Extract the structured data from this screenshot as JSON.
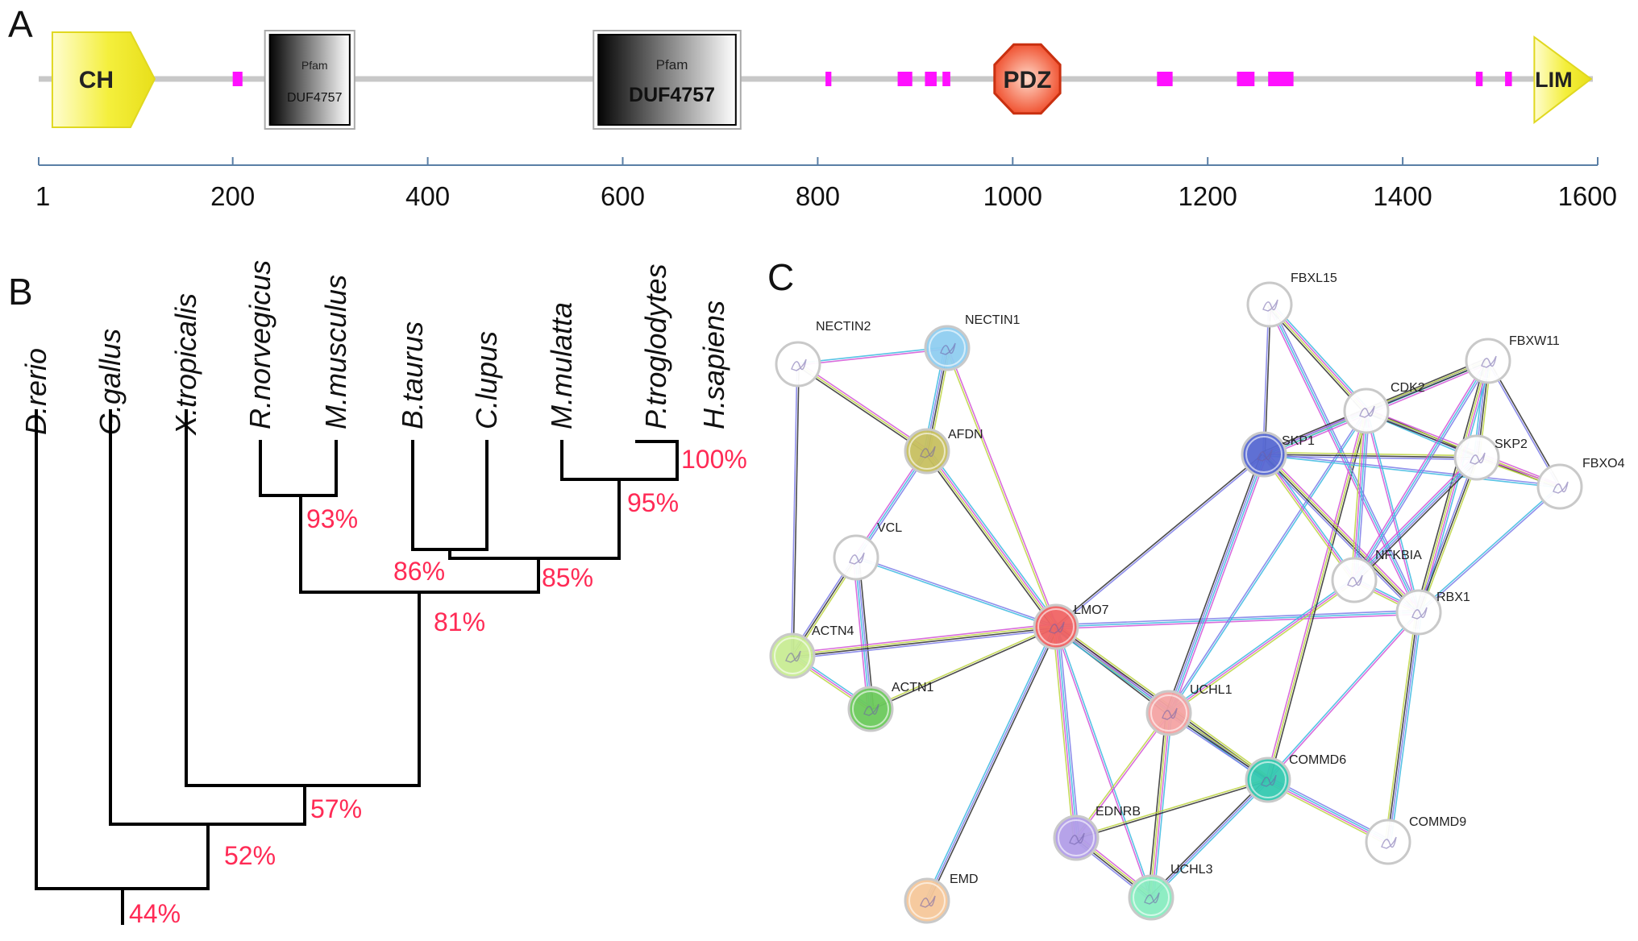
{
  "panels": {
    "a": "A",
    "b": "B",
    "c": "C"
  },
  "domain_map": {
    "axis_ticks": [
      {
        "label": "1",
        "value": 1
      },
      {
        "label": "200",
        "value": 200
      },
      {
        "label": "400",
        "value": 400
      },
      {
        "label": "600",
        "value": 600
      },
      {
        "label": "800",
        "value": 800
      },
      {
        "label": "1000",
        "value": 1000
      },
      {
        "label": "1200",
        "value": 1200
      },
      {
        "label": "1400",
        "value": 1400
      },
      {
        "label": "1600",
        "value": 1600
      }
    ],
    "domains": [
      {
        "id": "ch",
        "label": "CH",
        "shape": "pentagon-right",
        "start": 15,
        "end": 120,
        "color": "#f2ec3a"
      },
      {
        "id": "duf1",
        "pfam": "Pfam",
        "label": "DUF4757",
        "shape": "box",
        "start": 238,
        "end": 320,
        "color": "#000000"
      },
      {
        "id": "duf2",
        "pfam": "Pfam",
        "label": "DUF4757",
        "shape": "box",
        "start": 575,
        "end": 716,
        "color": "#000000"
      },
      {
        "id": "pdz",
        "label": "PDZ",
        "shape": "octagon",
        "start": 980,
        "end": 1050,
        "color": "#f04a24"
      },
      {
        "id": "lim",
        "label": "LIM",
        "shape": "arrow",
        "start": 1535,
        "end": 1575,
        "color": "#f2ec3a"
      }
    ],
    "motifs": [
      {
        "start": 200,
        "end": 210
      },
      {
        "start": 808,
        "end": 814
      },
      {
        "start": 882,
        "end": 897
      },
      {
        "start": 910,
        "end": 922
      },
      {
        "start": 928,
        "end": 936
      },
      {
        "start": 1148,
        "end": 1164
      },
      {
        "start": 1230,
        "end": 1248
      },
      {
        "start": 1262,
        "end": 1288
      },
      {
        "start": 1475,
        "end": 1482
      },
      {
        "start": 1505,
        "end": 1512
      }
    ],
    "motif_color": "#ff10ff"
  },
  "tree": {
    "taxa": [
      "D.rerio",
      "G.gallus",
      "X.tropicalis",
      "R.norvegicus",
      "M.musculus",
      "B.taurus",
      "C.lupus",
      "M.mulatta",
      "P.troglodytes",
      "H.sapiens"
    ],
    "bootstrap": [
      {
        "node": "hom_pan",
        "label": "100%"
      },
      {
        "node": "primates",
        "label": "95%"
      },
      {
        "node": "rodents",
        "label": "93%"
      },
      {
        "node": "laurasia",
        "label": "86%"
      },
      {
        "node": "euarchonto",
        "label": "85%"
      },
      {
        "node": "mammals",
        "label": "81%"
      },
      {
        "node": "tetrapods",
        "label": "57%"
      },
      {
        "node": "amniotes",
        "label": "52%"
      },
      {
        "node": "root",
        "label": "44%"
      }
    ]
  },
  "network": {
    "nodes": [
      {
        "id": "NECTIN2",
        "label": "NECTIN2",
        "fill": "#ffffff"
      },
      {
        "id": "NECTIN1",
        "label": "NECTIN1",
        "fill": "#8fcdf0"
      },
      {
        "id": "AFDN",
        "label": "AFDN",
        "fill": "#c7c060"
      },
      {
        "id": "VCL",
        "label": "VCL",
        "fill": "#ffffff"
      },
      {
        "id": "ACTN4",
        "label": "ACTN4",
        "fill": "#c8ec94"
      },
      {
        "id": "ACTN1",
        "label": "ACTN1",
        "fill": "#6cc95c"
      },
      {
        "id": "LMO7",
        "label": "LMO7",
        "fill": "#f06464"
      },
      {
        "id": "EMD",
        "label": "EMD",
        "fill": "#f5c79a"
      },
      {
        "id": "EDNRB",
        "label": "EDNRB",
        "fill": "#b29ee8"
      },
      {
        "id": "UCHL3",
        "label": "UCHL3",
        "fill": "#88ecc0"
      },
      {
        "id": "UCHL1",
        "label": "UCHL1",
        "fill": "#f4a3a3"
      },
      {
        "id": "COMMD6",
        "label": "COMMD6",
        "fill": "#35c9b0"
      },
      {
        "id": "COMMD9",
        "label": "COMMD9",
        "fill": "#ffffff"
      },
      {
        "id": "FBXL15",
        "label": "FBXL15",
        "fill": "#ffffff"
      },
      {
        "id": "SKP1",
        "label": "SKP1",
        "fill": "#5668d2"
      },
      {
        "id": "CDK2",
        "label": "CDK2",
        "fill": "#ffffff"
      },
      {
        "id": "FBXW11",
        "label": "FBXW11",
        "fill": "#ffffff"
      },
      {
        "id": "SKP2",
        "label": "SKP2",
        "fill": "#ffffff"
      },
      {
        "id": "FBXO4",
        "label": "FBXO4",
        "fill": "#ffffff"
      },
      {
        "id": "NFKBIA",
        "label": "NFKBIA",
        "fill": "#ffffff"
      },
      {
        "id": "RBX1",
        "label": "RBX1",
        "fill": "#ffffff"
      }
    ],
    "edges": [
      [
        "NECTIN2",
        "NECTIN1"
      ],
      [
        "NECTIN2",
        "AFDN"
      ],
      [
        "NECTIN1",
        "AFDN"
      ],
      [
        "NECTIN2",
        "ACTN4"
      ],
      [
        "AFDN",
        "VCL"
      ],
      [
        "AFDN",
        "LMO7"
      ],
      [
        "NECTIN1",
        "LMO7"
      ],
      [
        "VCL",
        "ACTN4"
      ],
      [
        "VCL",
        "ACTN1"
      ],
      [
        "VCL",
        "LMO7"
      ],
      [
        "ACTN4",
        "ACTN1"
      ],
      [
        "ACTN4",
        "LMO7"
      ],
      [
        "ACTN1",
        "LMO7"
      ],
      [
        "LMO7",
        "EMD"
      ],
      [
        "LMO7",
        "EDNRB"
      ],
      [
        "LMO7",
        "UCHL3"
      ],
      [
        "LMO7",
        "UCHL1"
      ],
      [
        "LMO7",
        "COMMD6"
      ],
      [
        "LMO7",
        "SKP1"
      ],
      [
        "LMO7",
        "RBX1"
      ],
      [
        "UCHL1",
        "UCHL3"
      ],
      [
        "UCHL1",
        "EDNRB"
      ],
      [
        "UCHL1",
        "COMMD6"
      ],
      [
        "UCHL1",
        "SKP1"
      ],
      [
        "UCHL1",
        "CDK2"
      ],
      [
        "UCHL1",
        "NFKBIA"
      ],
      [
        "EDNRB",
        "UCHL3"
      ],
      [
        "EDNRB",
        "COMMD6"
      ],
      [
        "UCHL3",
        "COMMD6"
      ],
      [
        "COMMD6",
        "COMMD9"
      ],
      [
        "COMMD6",
        "RBX1"
      ],
      [
        "COMMD6",
        "CDK2"
      ],
      [
        "COMMD9",
        "RBX1"
      ],
      [
        "FBXL15",
        "SKP1"
      ],
      [
        "FBXL15",
        "RBX1"
      ],
      [
        "FBXL15",
        "CDK2"
      ],
      [
        "SKP1",
        "CDK2"
      ],
      [
        "SKP1",
        "SKP2"
      ],
      [
        "SKP1",
        "FBXW11"
      ],
      [
        "SKP1",
        "FBXO4"
      ],
      [
        "SKP1",
        "NFKBIA"
      ],
      [
        "SKP1",
        "RBX1"
      ],
      [
        "CDK2",
        "FBXW11"
      ],
      [
        "CDK2",
        "SKP2"
      ],
      [
        "CDK2",
        "NFKBIA"
      ],
      [
        "CDK2",
        "RBX1"
      ],
      [
        "CDK2",
        "FBXO4"
      ],
      [
        "FBXW11",
        "SKP2"
      ],
      [
        "FBXW11",
        "FBXO4"
      ],
      [
        "FBXW11",
        "NFKBIA"
      ],
      [
        "FBXW11",
        "RBX1"
      ],
      [
        "SKP2",
        "FBXO4"
      ],
      [
        "SKP2",
        "RBX1"
      ],
      [
        "SKP2",
        "NFKBIA"
      ],
      [
        "FBXO4",
        "RBX1"
      ],
      [
        "NFKBIA",
        "RBX1"
      ]
    ]
  }
}
